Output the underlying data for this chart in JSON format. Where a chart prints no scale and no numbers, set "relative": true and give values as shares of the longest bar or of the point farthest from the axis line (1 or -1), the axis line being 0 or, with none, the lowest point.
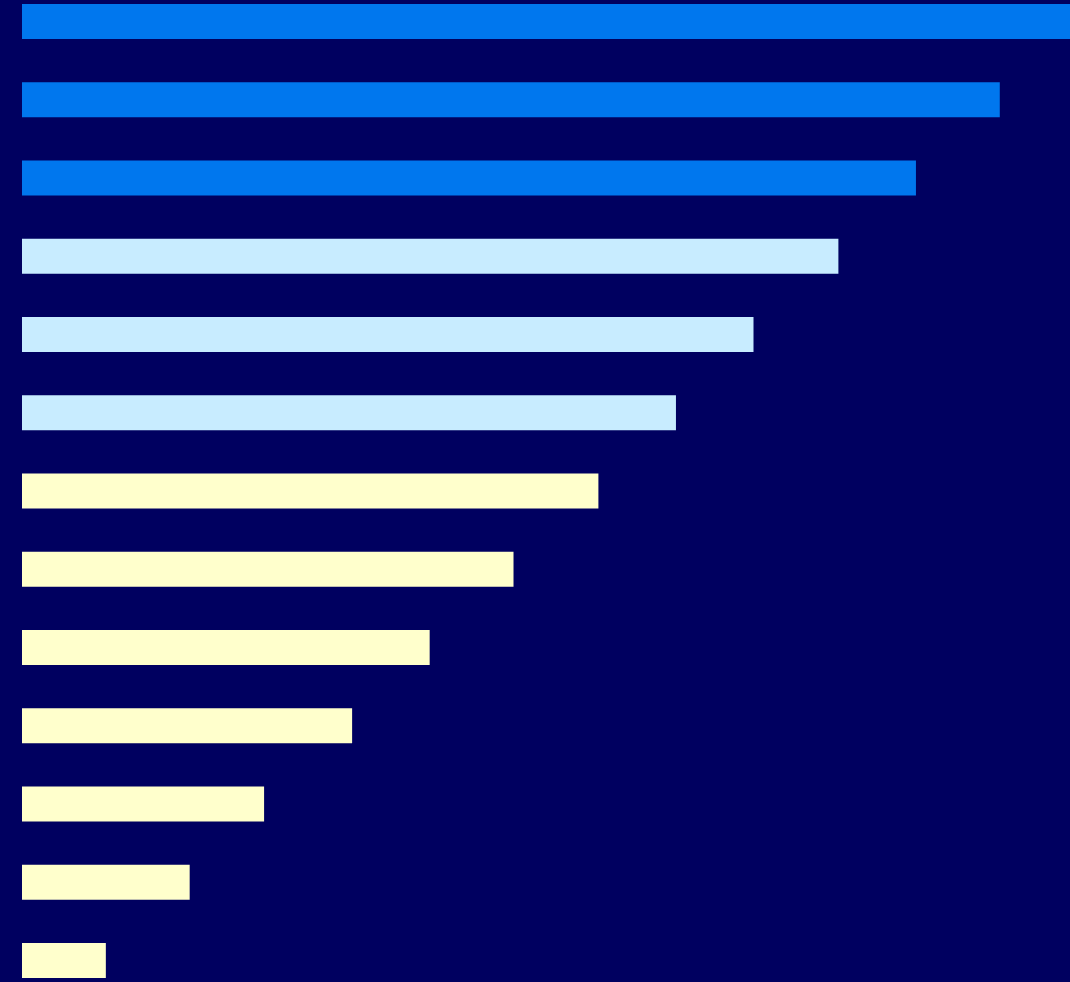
{
  "chart_data": {
    "type": "bar",
    "orientation": "horizontal",
    "relative": true,
    "categories": [
      null,
      null,
      null,
      null,
      null,
      null,
      null,
      null,
      null,
      null,
      null,
      null,
      null
    ],
    "values": [
      1,
      0.933,
      0.853,
      0.779,
      0.698,
      0.624,
      0.55,
      0.469,
      0.389,
      0.315,
      0.231,
      0.16,
      0.08
    ],
    "colors": [
      "#0077ee",
      "#0077ee",
      "#0077ee",
      "#c8ecff",
      "#c8ecff",
      "#c8ecff",
      "#ffffcc",
      "#ffffcc",
      "#ffffcc",
      "#ffffcc",
      "#ffffcc",
      "#ffffcc",
      "#ffffcc"
    ]
  }
}
